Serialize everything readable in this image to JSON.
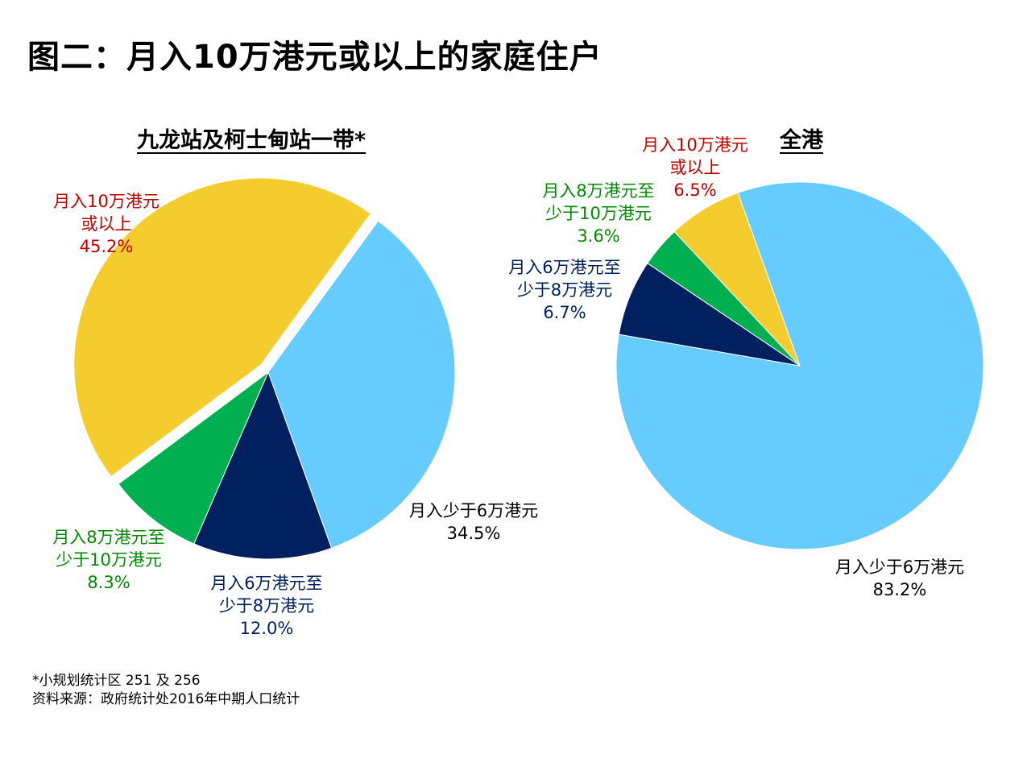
{
  "title": "图二：月入10万港元或以上的家庭住户",
  "colors": {
    "lt10": "#66CCFF",
    "r6to8": "#002060",
    "r8to10": "#00B050",
    "ge10": "#F5CC2E",
    "label_red": "#C00000",
    "label_green": "#008A00",
    "label_navy": "#002060",
    "label_black": "#000000"
  },
  "chart_data": [
    {
      "type": "pie",
      "title": "九龙站及柯士甸站一带*",
      "slices": [
        {
          "label_lines": [
            "月入少于6万港元"
          ],
          "value": 34.5,
          "value_text": "34.5%",
          "color": "#66CCFF"
        },
        {
          "label_lines": [
            "月入6万港元至",
            "少于8万港元"
          ],
          "value": 12.0,
          "value_text": "12.0%",
          "color": "#002060"
        },
        {
          "label_lines": [
            "月入8万港元至",
            "少于10万港元"
          ],
          "value": 8.3,
          "value_text": "8.3%",
          "color": "#00B050"
        },
        {
          "label_lines": [
            "月入10万港元",
            "或以上"
          ],
          "value": 45.2,
          "value_text": "45.2%",
          "color": "#F5CC2E",
          "exploded": true
        }
      ]
    },
    {
      "type": "pie",
      "title": "全港",
      "slices": [
        {
          "label_lines": [
            "月入少于6万港元"
          ],
          "value": 83.2,
          "value_text": "83.2%",
          "color": "#66CCFF"
        },
        {
          "label_lines": [
            "月入6万港元至",
            "少于8万港元"
          ],
          "value": 6.7,
          "value_text": "6.7%",
          "color": "#002060"
        },
        {
          "label_lines": [
            "月入8万港元至",
            "少于10万港元"
          ],
          "value": 3.6,
          "value_text": "3.6%",
          "color": "#00B050"
        },
        {
          "label_lines": [
            "月入10万港元",
            "或以上"
          ],
          "value": 6.5,
          "value_text": "6.5%",
          "color": "#F5CC2E"
        }
      ]
    }
  ],
  "footnotes": [
    "*小规划统计区 251 及 256",
    "资料来源：政府统计处2016年中期人口统计"
  ]
}
